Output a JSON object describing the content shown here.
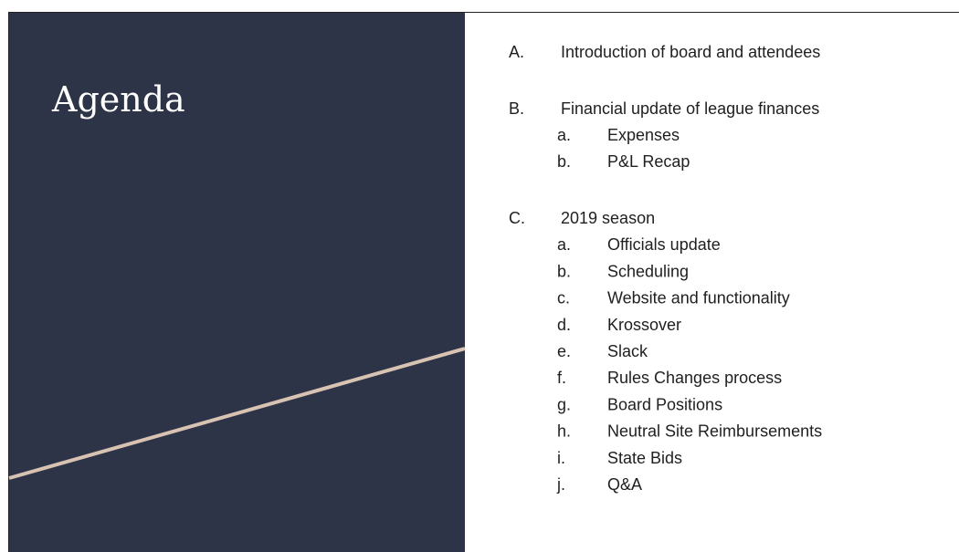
{
  "slide": {
    "title": "Agenda",
    "items": [
      {
        "label": "A.",
        "text": "Introduction of board and attendees",
        "subitems": []
      },
      {
        "label": "B.",
        "text": "Financial update of league finances",
        "subitems": [
          {
            "label": "a.",
            "text": "Expenses"
          },
          {
            "label": "b.",
            "text": "P&L Recap"
          }
        ]
      },
      {
        "label": "C.",
        "text": "2019 season",
        "subitems": [
          {
            "label": "a.",
            "text": "Officials update"
          },
          {
            "label": "b.",
            "text": "Scheduling"
          },
          {
            "label": "c.",
            "text": "Website and functionality"
          },
          {
            "label": "d.",
            "text": "Krossover"
          },
          {
            "label": "e.",
            "text": "Slack"
          },
          {
            "label": "f.",
            "text": "Rules Changes process"
          },
          {
            "label": "g.",
            "text": "Board Positions"
          },
          {
            "label": "h.",
            "text": "Neutral Site Reimbursements"
          },
          {
            "label": "i.",
            "text": "State Bids"
          },
          {
            "label": "j.",
            "text": "Q&A"
          }
        ]
      }
    ]
  }
}
